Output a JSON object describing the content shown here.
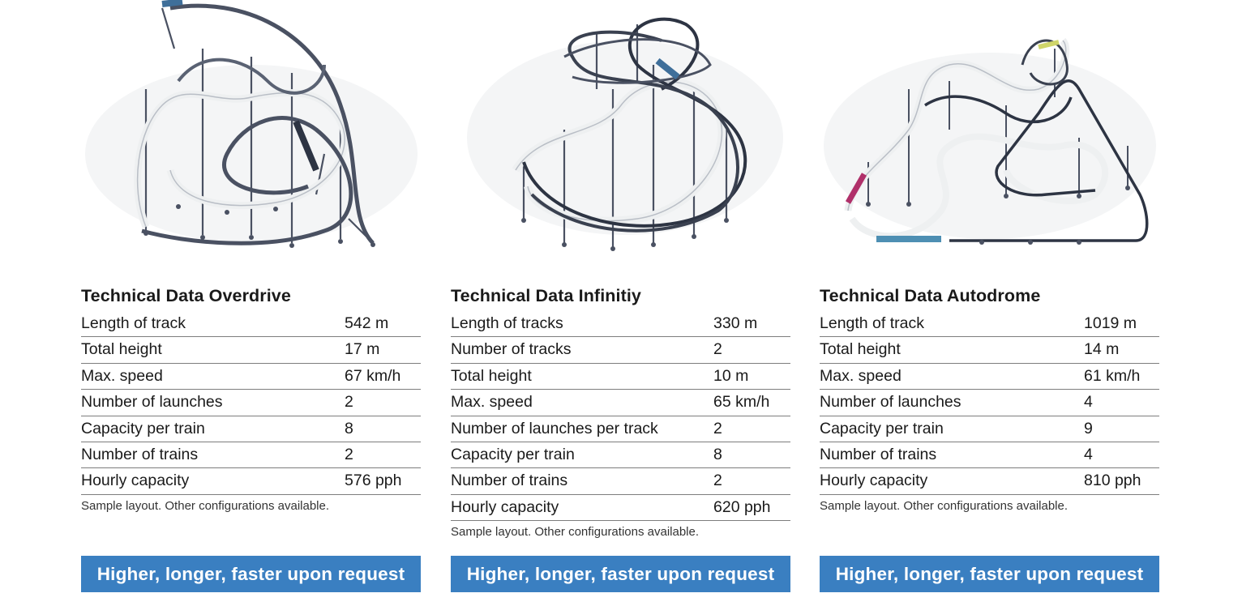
{
  "columns": [
    {
      "title": "Technical Data Overdrive",
      "rows": [
        {
          "label": "Length of track",
          "value": "542 m"
        },
        {
          "label": "Total height",
          "value": "17 m"
        },
        {
          "label": "Max. speed",
          "value": "67 km/h"
        },
        {
          "label": "Number of launches",
          "value": "2"
        },
        {
          "label": "Capacity per train",
          "value": "8"
        },
        {
          "label": "Number of trains",
          "value": "2"
        },
        {
          "label": "Hourly capacity",
          "value": "576 pph"
        }
      ],
      "note": "Sample layout. Other configurations available.",
      "cta": "Higher, longer, faster upon request"
    },
    {
      "title": "Technical Data Infinitiy",
      "rows": [
        {
          "label": "Length of tracks",
          "value": "330 m"
        },
        {
          "label": "Number of tracks",
          "value": "2"
        },
        {
          "label": "Total height",
          "value": "10 m"
        },
        {
          "label": "Max. speed",
          "value": "65 km/h"
        },
        {
          "label": "Number of launches per track",
          "value": "2"
        },
        {
          "label": "Capacity per train",
          "value": "8"
        },
        {
          "label": "Number of trains",
          "value": "2"
        },
        {
          "label": "Hourly capacity",
          "value": "620 pph"
        }
      ],
      "note": "Sample layout. Other configurations available.",
      "cta": "Higher, longer, faster upon request"
    },
    {
      "title": "Technical Data Autodrome",
      "rows": [
        {
          "label": "Length of track",
          "value": "1019 m"
        },
        {
          "label": "Total height",
          "value": "14 m"
        },
        {
          "label": "Max. speed",
          "value": "61 km/h"
        },
        {
          "label": "Number of launches",
          "value": "4"
        },
        {
          "label": "Capacity per train",
          "value": "9"
        },
        {
          "label": "Number of trains",
          "value": "4"
        },
        {
          "label": "Hourly capacity",
          "value": "810 pph"
        }
      ],
      "note": "Sample layout. Other configurations available.",
      "cta": "Higher, longer, faster upon request"
    }
  ],
  "colors": {
    "cta_background": "#3a7fc1",
    "cta_text": "#ffffff",
    "track_dark": "#2d3443",
    "track_light": "#f1f2f2",
    "train_blue": "#3f6f9a",
    "train_magenta": "#b0306a"
  }
}
